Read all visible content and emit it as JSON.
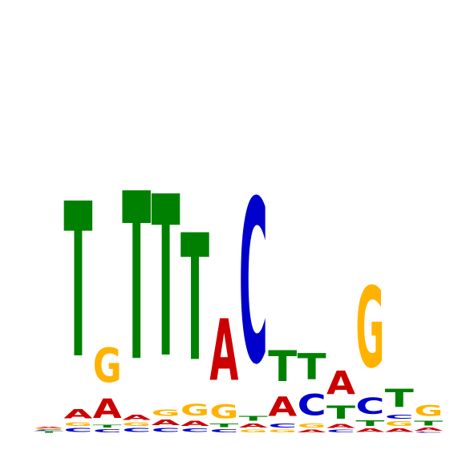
{
  "colors": {
    "A": "#cc0000",
    "C": "#0000cc",
    "G": "#ffb300",
    "T": "#008000"
  },
  "positions": [
    {
      "letters": [
        [
          "T",
          0.03
        ],
        [
          "C",
          0.02
        ],
        [
          "G",
          0.02
        ],
        [
          "A",
          0.02
        ]
      ]
    },
    {
      "letters": [
        [
          "C",
          0.09
        ],
        [
          "G",
          0.08
        ],
        [
          "A",
          0.22
        ],
        [
          "T",
          3.6
        ]
      ]
    },
    {
      "letters": [
        [
          "C",
          0.07
        ],
        [
          "T",
          0.06
        ],
        [
          "A",
          0.45
        ],
        [
          "G",
          0.8
        ]
      ]
    },
    {
      "letters": [
        [
          "C",
          0.09
        ],
        [
          "G",
          0.08
        ],
        [
          "A",
          0.12
        ],
        [
          "T",
          3.9
        ]
      ]
    },
    {
      "letters": [
        [
          "C",
          0.09
        ],
        [
          "A",
          0.13
        ],
        [
          "G",
          0.15
        ],
        [
          "T",
          3.75
        ]
      ]
    },
    {
      "letters": [
        [
          "C",
          0.08
        ],
        [
          "A",
          0.12
        ],
        [
          "G",
          0.27
        ],
        [
          "T",
          2.95
        ]
      ]
    },
    {
      "letters": [
        [
          "C",
          0.07
        ],
        [
          "T",
          0.08
        ],
        [
          "G",
          0.33
        ],
        [
          "A",
          1.43
        ]
      ]
    },
    {
      "letters": [
        [
          "G",
          0.06
        ],
        [
          "A",
          0.1
        ],
        [
          "T",
          0.11
        ],
        [
          "C",
          3.8
        ]
      ]
    },
    {
      "letters": [
        [
          "G",
          0.06
        ],
        [
          "C",
          0.1
        ],
        [
          "A",
          0.45
        ],
        [
          "T",
          0.71
        ]
      ]
    },
    {
      "letters": [
        [
          "A",
          0.06
        ],
        [
          "G",
          0.1
        ],
        [
          "C",
          0.5
        ],
        [
          "T",
          0.6
        ]
      ]
    },
    {
      "letters": [
        [
          "C",
          0.06
        ],
        [
          "A",
          0.09
        ],
        [
          "T",
          0.3
        ],
        [
          "A",
          0.55
        ]
      ]
    },
    {
      "letters": [
        [
          "A",
          0.08
        ],
        [
          "T",
          0.13
        ],
        [
          "C",
          0.37
        ],
        [
          "G",
          1.88
        ]
      ]
    },
    {
      "letters": [
        [
          "A",
          0.08
        ],
        [
          "G",
          0.11
        ],
        [
          "C",
          0.1
        ],
        [
          "T",
          0.42
        ]
      ]
    },
    {
      "letters": [
        [
          "C",
          0.02
        ],
        [
          "A",
          0.07
        ],
        [
          "T",
          0.11
        ],
        [
          "G",
          0.25
        ]
      ]
    }
  ]
}
